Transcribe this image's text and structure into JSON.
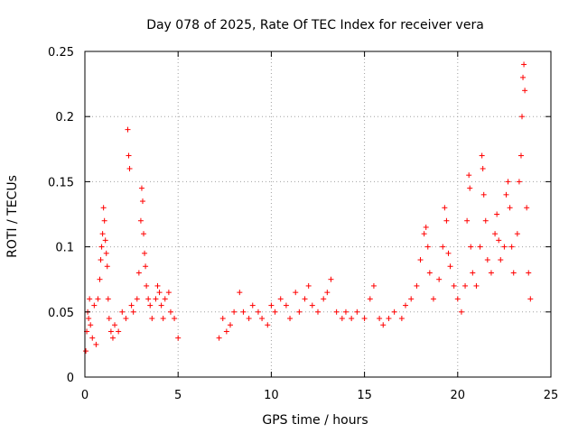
{
  "chart_data": {
    "type": "scatter",
    "title": "Day 078 of 2025, Rate Of TEC Index for receiver vera",
    "xlabel": "GPS time / hours",
    "ylabel": "ROTI / TECUs",
    "xlim": [
      0,
      25
    ],
    "ylim": [
      0,
      0.25
    ],
    "xticks": [
      0,
      5,
      10,
      15,
      20,
      25
    ],
    "yticks": [
      0,
      0.05,
      0.1,
      0.15,
      0.2,
      0.25
    ],
    "xtick_labels": [
      "0",
      "5",
      "10",
      "15",
      "20",
      "25"
    ],
    "ytick_labels": [
      "0",
      "0.05",
      "0.1",
      "0.15",
      "0.2",
      "0.25"
    ],
    "grid": true,
    "marker": "plus",
    "color": "#ff0000",
    "series": [
      {
        "points": [
          [
            0.05,
            0.02
          ],
          [
            0.1,
            0.035
          ],
          [
            0.15,
            0.05
          ],
          [
            0.2,
            0.045
          ],
          [
            0.25,
            0.06
          ],
          [
            0.3,
            0.04
          ],
          [
            0.4,
            0.03
          ],
          [
            0.5,
            0.055
          ],
          [
            0.6,
            0.025
          ],
          [
            0.7,
            0.06
          ],
          [
            0.8,
            0.075
          ],
          [
            0.85,
            0.09
          ],
          [
            0.9,
            0.1
          ],
          [
            0.95,
            0.11
          ],
          [
            1.0,
            0.13
          ],
          [
            1.05,
            0.12
          ],
          [
            1.1,
            0.105
          ],
          [
            1.15,
            0.095
          ],
          [
            1.2,
            0.085
          ],
          [
            1.25,
            0.06
          ],
          [
            1.3,
            0.045
          ],
          [
            1.4,
            0.035
          ],
          [
            1.5,
            0.03
          ],
          [
            1.6,
            0.04
          ],
          [
            1.8,
            0.035
          ],
          [
            2.0,
            0.05
          ],
          [
            2.2,
            0.045
          ],
          [
            2.3,
            0.19
          ],
          [
            2.35,
            0.17
          ],
          [
            2.4,
            0.16
          ],
          [
            2.5,
            0.055
          ],
          [
            2.6,
            0.05
          ],
          [
            2.8,
            0.06
          ],
          [
            2.9,
            0.08
          ],
          [
            3.0,
            0.12
          ],
          [
            3.05,
            0.145
          ],
          [
            3.1,
            0.135
          ],
          [
            3.15,
            0.11
          ],
          [
            3.2,
            0.095
          ],
          [
            3.25,
            0.085
          ],
          [
            3.3,
            0.07
          ],
          [
            3.4,
            0.06
          ],
          [
            3.5,
            0.055
          ],
          [
            3.6,
            0.045
          ],
          [
            3.8,
            0.06
          ],
          [
            3.9,
            0.07
          ],
          [
            4.0,
            0.065
          ],
          [
            4.1,
            0.055
          ],
          [
            4.2,
            0.045
          ],
          [
            4.3,
            0.06
          ],
          [
            4.5,
            0.065
          ],
          [
            4.6,
            0.05
          ],
          [
            4.8,
            0.045
          ],
          [
            5.0,
            0.03
          ],
          [
            7.2,
            0.03
          ],
          [
            7.4,
            0.045
          ],
          [
            7.6,
            0.035
          ],
          [
            7.8,
            0.04
          ],
          [
            8.0,
            0.05
          ],
          [
            8.3,
            0.065
          ],
          [
            8.5,
            0.05
          ],
          [
            8.8,
            0.045
          ],
          [
            9.0,
            0.055
          ],
          [
            9.3,
            0.05
          ],
          [
            9.5,
            0.045
          ],
          [
            9.8,
            0.04
          ],
          [
            10.0,
            0.055
          ],
          [
            10.2,
            0.05
          ],
          [
            10.5,
            0.06
          ],
          [
            10.8,
            0.055
          ],
          [
            11.0,
            0.045
          ],
          [
            11.3,
            0.065
          ],
          [
            11.5,
            0.05
          ],
          [
            11.8,
            0.06
          ],
          [
            12.0,
            0.07
          ],
          [
            12.2,
            0.055
          ],
          [
            12.5,
            0.05
          ],
          [
            12.8,
            0.06
          ],
          [
            13.0,
            0.065
          ],
          [
            13.2,
            0.075
          ],
          [
            13.5,
            0.05
          ],
          [
            13.8,
            0.045
          ],
          [
            14.0,
            0.05
          ],
          [
            14.3,
            0.045
          ],
          [
            14.6,
            0.05
          ],
          [
            15.0,
            0.045
          ],
          [
            15.3,
            0.06
          ],
          [
            15.5,
            0.07
          ],
          [
            15.8,
            0.045
          ],
          [
            16.0,
            0.04
          ],
          [
            16.3,
            0.045
          ],
          [
            16.6,
            0.05
          ],
          [
            17.0,
            0.045
          ],
          [
            17.2,
            0.055
          ],
          [
            17.5,
            0.06
          ],
          [
            17.8,
            0.07
          ],
          [
            18.0,
            0.09
          ],
          [
            18.2,
            0.11
          ],
          [
            18.3,
            0.115
          ],
          [
            18.4,
            0.1
          ],
          [
            18.5,
            0.08
          ],
          [
            18.7,
            0.06
          ],
          [
            19.0,
            0.075
          ],
          [
            19.2,
            0.1
          ],
          [
            19.3,
            0.13
          ],
          [
            19.4,
            0.12
          ],
          [
            19.5,
            0.095
          ],
          [
            19.6,
            0.085
          ],
          [
            19.8,
            0.07
          ],
          [
            20.0,
            0.06
          ],
          [
            20.2,
            0.05
          ],
          [
            20.4,
            0.07
          ],
          [
            20.5,
            0.12
          ],
          [
            20.6,
            0.155
          ],
          [
            20.65,
            0.145
          ],
          [
            20.7,
            0.1
          ],
          [
            20.8,
            0.08
          ],
          [
            21.0,
            0.07
          ],
          [
            21.2,
            0.1
          ],
          [
            21.3,
            0.17
          ],
          [
            21.35,
            0.16
          ],
          [
            21.4,
            0.14
          ],
          [
            21.5,
            0.12
          ],
          [
            21.6,
            0.09
          ],
          [
            21.8,
            0.08
          ],
          [
            22.0,
            0.11
          ],
          [
            22.1,
            0.125
          ],
          [
            22.2,
            0.105
          ],
          [
            22.3,
            0.09
          ],
          [
            22.5,
            0.1
          ],
          [
            22.6,
            0.14
          ],
          [
            22.7,
            0.15
          ],
          [
            22.8,
            0.13
          ],
          [
            22.9,
            0.1
          ],
          [
            23.0,
            0.08
          ],
          [
            23.2,
            0.11
          ],
          [
            23.3,
            0.15
          ],
          [
            23.4,
            0.17
          ],
          [
            23.45,
            0.2
          ],
          [
            23.5,
            0.23
          ],
          [
            23.55,
            0.24
          ],
          [
            23.6,
            0.22
          ],
          [
            23.7,
            0.13
          ],
          [
            23.8,
            0.08
          ],
          [
            23.9,
            0.06
          ]
        ]
      }
    ]
  }
}
